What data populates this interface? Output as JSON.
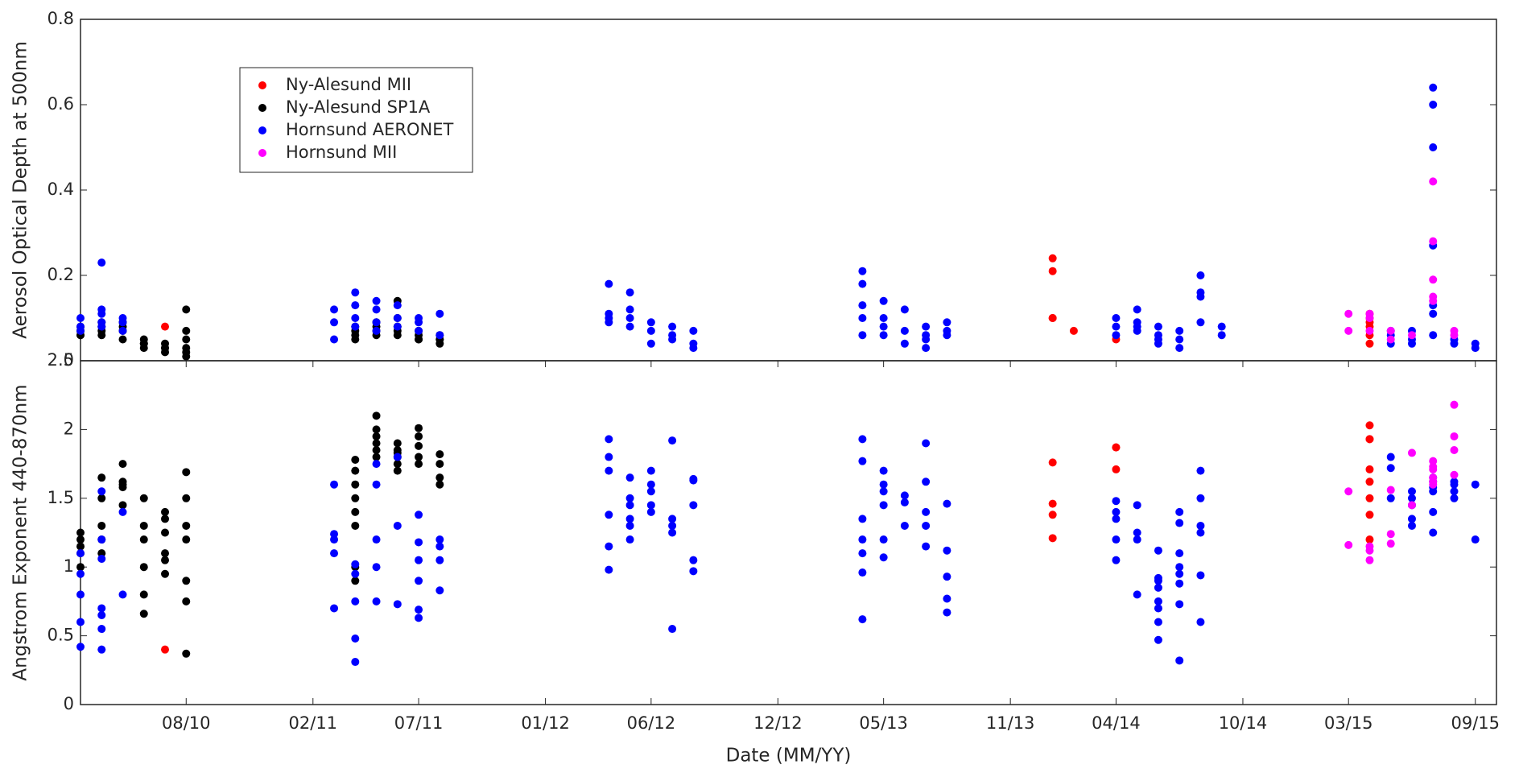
{
  "chart_data": [
    {
      "type": "scatter",
      "y_label": "Aerosol Optical Depth at 500nm",
      "xlim": [
        "03/10",
        "10/15"
      ],
      "ylim": [
        0,
        0.8
      ],
      "yticks": [
        0,
        0.2,
        0.4,
        0.6,
        0.8
      ],
      "legend": "upper left",
      "series": [
        {
          "name": "Ny-Alesund MII",
          "color": "#ff0000",
          "x": [
            "07/10",
            "01/14",
            "01/14",
            "01/14",
            "01/14",
            "02/14",
            "04/14",
            "04/15",
            "04/15",
            "04/15",
            "04/15",
            "04/15",
            "04/15"
          ],
          "values": [
            0.08,
            0.1,
            0.1,
            0.24,
            0.21,
            0.07,
            0.05,
            0.04,
            0.06,
            0.08,
            0.09,
            0.1,
            0.11
          ]
        },
        {
          "name": "Ny-Alesund SP1A",
          "color": "#000000",
          "x": [
            "03/10",
            "03/10",
            "03/10",
            "03/10",
            "04/10",
            "04/10",
            "04/10",
            "04/10",
            "05/10",
            "05/10",
            "05/10",
            "05/10",
            "06/10",
            "06/10",
            "06/10",
            "06/10",
            "07/10",
            "07/10",
            "07/10",
            "07/10",
            "08/10",
            "08/10",
            "08/10",
            "08/10",
            "08/10",
            "08/10",
            "04/11",
            "04/11",
            "04/11",
            "04/11",
            "05/11",
            "05/11",
            "05/11",
            "05/11",
            "06/11",
            "06/11",
            "06/11",
            "06/11",
            "06/11",
            "07/11",
            "07/11",
            "07/11",
            "07/11",
            "08/11",
            "08/11",
            "08/11",
            "08/11"
          ],
          "values": [
            0.06,
            0.07,
            0.08,
            0.06,
            0.07,
            0.09,
            0.06,
            0.08,
            0.08,
            0.09,
            0.07,
            0.05,
            0.04,
            0.05,
            0.03,
            0.04,
            0.03,
            0.04,
            0.03,
            0.02,
            0.02,
            0.03,
            0.05,
            0.12,
            0.07,
            0.01,
            0.06,
            0.08,
            0.05,
            0.07,
            0.07,
            0.09,
            0.08,
            0.06,
            0.1,
            0.08,
            0.14,
            0.07,
            0.06,
            0.06,
            0.05,
            0.07,
            0.05,
            0.05,
            0.04,
            0.06,
            0.05
          ]
        },
        {
          "name": "Hornsund AERONET",
          "color": "#0000ff",
          "x": [
            "03/10",
            "03/10",
            "03/10",
            "04/10",
            "04/10",
            "04/10",
            "04/10",
            "04/10",
            "05/10",
            "05/10",
            "05/10",
            "03/11",
            "03/11",
            "03/11",
            "04/11",
            "04/11",
            "04/11",
            "04/11",
            "05/11",
            "05/11",
            "05/11",
            "05/11",
            "06/11",
            "06/11",
            "06/11",
            "07/11",
            "07/11",
            "07/11",
            "08/11",
            "08/11",
            "04/12",
            "04/12",
            "04/12",
            "04/12",
            "05/12",
            "05/12",
            "05/12",
            "05/12",
            "06/12",
            "06/12",
            "06/12",
            "07/12",
            "07/12",
            "07/12",
            "08/12",
            "08/12",
            "08/12",
            "04/13",
            "04/13",
            "04/13",
            "04/13",
            "04/13",
            "05/13",
            "05/13",
            "05/13",
            "05/13",
            "06/13",
            "06/13",
            "06/13",
            "07/13",
            "07/13",
            "07/13",
            "07/13",
            "08/13",
            "08/13",
            "08/13",
            "04/14",
            "04/14",
            "04/14",
            "05/14",
            "05/14",
            "05/14",
            "05/14",
            "06/14",
            "06/14",
            "06/14",
            "06/14",
            "07/14",
            "07/14",
            "07/14",
            "08/14",
            "08/14",
            "08/14",
            "08/14",
            "09/14",
            "09/14",
            "05/15",
            "05/15",
            "05/15",
            "06/15",
            "06/15",
            "06/15",
            "07/15",
            "07/15",
            "07/15",
            "07/15",
            "07/15",
            "07/15",
            "07/15",
            "08/15",
            "08/15",
            "09/15",
            "09/15"
          ],
          "values": [
            0.1,
            0.08,
            0.07,
            0.12,
            0.09,
            0.11,
            0.23,
            0.08,
            0.09,
            0.1,
            0.07,
            0.05,
            0.12,
            0.09,
            0.13,
            0.16,
            0.1,
            0.08,
            0.14,
            0.12,
            0.09,
            0.07,
            0.13,
            0.1,
            0.08,
            0.09,
            0.07,
            0.1,
            0.11,
            0.06,
            0.11,
            0.09,
            0.18,
            0.1,
            0.16,
            0.12,
            0.1,
            0.08,
            0.07,
            0.09,
            0.04,
            0.05,
            0.08,
            0.06,
            0.07,
            0.04,
            0.03,
            0.21,
            0.18,
            0.1,
            0.13,
            0.06,
            0.08,
            0.1,
            0.06,
            0.14,
            0.04,
            0.07,
            0.12,
            0.08,
            0.05,
            0.06,
            0.03,
            0.09,
            0.07,
            0.06,
            0.06,
            0.1,
            0.08,
            0.12,
            0.09,
            0.07,
            0.08,
            0.06,
            0.04,
            0.08,
            0.05,
            0.03,
            0.07,
            0.05,
            0.2,
            0.15,
            0.09,
            0.16,
            0.08,
            0.06,
            0.04,
            0.07,
            0.06,
            0.05,
            0.07,
            0.04,
            0.64,
            0.6,
            0.5,
            0.27,
            0.13,
            0.11,
            0.06,
            0.05,
            0.04,
            0.04,
            0.03
          ]
        },
        {
          "name": "Hornsund MII",
          "color": "#ff00ff",
          "x": [
            "03/15",
            "03/15",
            "04/15",
            "04/15",
            "04/15",
            "05/15",
            "05/15",
            "06/15",
            "07/15",
            "07/15",
            "07/15",
            "07/15",
            "07/15",
            "08/15",
            "08/15"
          ],
          "values": [
            0.11,
            0.07,
            0.1,
            0.07,
            0.11,
            0.07,
            0.05,
            0.06,
            0.42,
            0.28,
            0.19,
            0.15,
            0.14,
            0.07,
            0.06
          ]
        }
      ]
    },
    {
      "type": "scatter",
      "x_label": "Date (MM/YY)",
      "y_label": "Angstrom Exponent 440-870nm",
      "xlim": [
        "03/10",
        "10/15"
      ],
      "ylim": [
        0,
        2.5
      ],
      "yticks": [
        0,
        0.5,
        1,
        1.5,
        2,
        2.5
      ],
      "xticks": [
        "08/10",
        "02/11",
        "07/11",
        "01/12",
        "06/12",
        "12/12",
        "05/13",
        "11/13",
        "04/14",
        "10/14",
        "03/15",
        "09/15"
      ],
      "series": [
        {
          "color": "#ff0000",
          "x": [
            "07/10",
            "01/14",
            "01/14",
            "01/14",
            "01/14",
            "04/14",
            "04/14",
            "04/14",
            "04/15",
            "04/15",
            "04/15",
            "04/15",
            "04/15",
            "04/15",
            "04/15",
            "04/15"
          ],
          "values": [
            0.4,
            1.76,
            1.21,
            1.46,
            1.38,
            1.87,
            1.87,
            1.71,
            1.93,
            1.93,
            2.03,
            1.71,
            1.62,
            1.5,
            1.38,
            1.2
          ]
        },
        {
          "color": "#000000",
          "x": [
            "03/10",
            "03/10",
            "03/10",
            "03/10",
            "03/10",
            "04/10",
            "04/10",
            "04/10",
            "04/10",
            "04/10",
            "05/10",
            "05/10",
            "05/10",
            "05/10",
            "05/10",
            "06/10",
            "06/10",
            "06/10",
            "06/10",
            "06/10",
            "06/10",
            "07/10",
            "07/10",
            "07/10",
            "07/10",
            "07/10",
            "07/10",
            "08/10",
            "08/10",
            "08/10",
            "08/10",
            "08/10",
            "08/10",
            "08/10",
            "04/11",
            "04/11",
            "04/11",
            "04/11",
            "04/11",
            "04/11",
            "04/11",
            "04/11",
            "05/11",
            "05/11",
            "05/11",
            "05/11",
            "05/11",
            "05/11",
            "06/11",
            "06/11",
            "06/11",
            "06/11",
            "06/11",
            "06/11",
            "07/11",
            "07/11",
            "07/11",
            "07/11",
            "07/11",
            "08/11",
            "08/11",
            "08/11",
            "08/11"
          ],
          "values": [
            1.2,
            1.1,
            1.0,
            1.25,
            1.15,
            1.3,
            1.5,
            1.65,
            1.2,
            1.1,
            1.6,
            1.58,
            1.62,
            1.45,
            1.75,
            1.3,
            1.2,
            1.5,
            1.0,
            0.8,
            0.66,
            1.35,
            1.05,
            0.95,
            1.25,
            1.4,
            1.1,
            1.2,
            1.5,
            1.69,
            0.9,
            0.75,
            0.37,
            1.3,
            1.6,
            1.4,
            1.7,
            1.5,
            1.3,
            1.0,
            0.9,
            1.78,
            1.95,
            2.1,
            1.8,
            1.9,
            2.0,
            1.85,
            1.9,
            1.8,
            1.75,
            1.85,
            1.7,
            1.83,
            1.8,
            1.95,
            2.01,
            1.75,
            1.88,
            1.82,
            1.65,
            1.6,
            1.75
          ]
        },
        {
          "color": "#0000ff",
          "x": [
            "03/10",
            "03/10",
            "03/10",
            "03/10",
            "03/10",
            "04/10",
            "04/10",
            "04/10",
            "04/10",
            "04/10",
            "04/10",
            "04/10",
            "05/10",
            "05/10",
            "03/11",
            "03/11",
            "03/11",
            "03/11",
            "03/11",
            "04/11",
            "04/11",
            "04/11",
            "04/11",
            "04/11",
            "05/11",
            "05/11",
            "05/11",
            "05/11",
            "05/11",
            "06/11",
            "06/11",
            "06/11",
            "07/11",
            "07/11",
            "07/11",
            "07/11",
            "07/11",
            "07/11",
            "08/11",
            "08/11",
            "08/11",
            "08/11",
            "04/12",
            "04/12",
            "04/12",
            "04/12",
            "04/12",
            "04/12",
            "05/12",
            "05/12",
            "05/12",
            "05/12",
            "05/12",
            "05/12",
            "06/12",
            "06/12",
            "06/12",
            "06/12",
            "06/12",
            "07/12",
            "07/12",
            "07/12",
            "07/12",
            "07/12",
            "08/12",
            "08/12",
            "08/12",
            "08/12",
            "08/12",
            "04/13",
            "04/13",
            "04/13",
            "04/13",
            "04/13",
            "04/13",
            "04/13",
            "05/13",
            "05/13",
            "05/13",
            "05/13",
            "05/13",
            "05/13",
            "06/13",
            "06/13",
            "06/13",
            "07/13",
            "07/13",
            "07/13",
            "07/13",
            "07/13",
            "08/13",
            "08/13",
            "08/13",
            "08/13",
            "08/13",
            "04/14",
            "04/14",
            "04/14",
            "04/14",
            "04/14",
            "05/14",
            "05/14",
            "05/14",
            "05/14",
            "06/14",
            "06/14",
            "06/14",
            "06/14",
            "06/14",
            "06/14",
            "06/14",
            "06/14",
            "07/14",
            "07/14",
            "07/14",
            "07/14",
            "07/14",
            "07/14",
            "07/14",
            "07/14",
            "08/14",
            "08/14",
            "08/14",
            "08/14",
            "08/14",
            "08/14",
            "05/15",
            "05/15",
            "05/15",
            "06/15",
            "06/15",
            "06/15",
            "06/15",
            "06/15",
            "07/15",
            "07/15",
            "07/15",
            "07/15",
            "07/15",
            "07/15",
            "08/15",
            "08/15",
            "08/15",
            "08/15",
            "09/15",
            "09/15"
          ],
          "values": [
            0.8,
            0.95,
            1.1,
            0.42,
            0.6,
            0.7,
            1.55,
            1.2,
            0.4,
            0.65,
            0.55,
            1.06,
            1.4,
            0.8,
            0.7,
            1.1,
            1.24,
            1.6,
            1.2,
            0.48,
            0.31,
            0.95,
            0.75,
            1.02,
            1.2,
            1.0,
            1.6,
            0.75,
            1.75,
            1.8,
            1.3,
            0.73,
            0.63,
            1.05,
            0.9,
            0.69,
            1.18,
            1.38,
            0.83,
            1.2,
            1.05,
            1.15,
            1.38,
            0.98,
            1.15,
            1.7,
            1.8,
            1.93,
            1.45,
            1.3,
            1.2,
            1.5,
            1.65,
            1.35,
            1.6,
            1.55,
            1.7,
            1.45,
            1.4,
            1.92,
            1.35,
            1.25,
            0.55,
            1.3,
            1.63,
            0.97,
            1.05,
            1.45,
            1.64,
            1.2,
            1.35,
            0.96,
            0.62,
            1.77,
            1.93,
            1.1,
            1.55,
            1.45,
            1.6,
            1.7,
            1.07,
            1.2,
            1.52,
            1.47,
            1.3,
            1.9,
            1.62,
            1.15,
            1.4,
            1.3,
            1.12,
            0.93,
            0.77,
            1.46,
            0.67,
            1.35,
            1.2,
            1.05,
            1.48,
            1.4,
            1.25,
            0.8,
            1.45,
            1.2,
            0.92,
            0.75,
            0.85,
            0.47,
            0.7,
            0.9,
            0.6,
            1.12,
            0.32,
            0.95,
            0.73,
            1.1,
            1.32,
            1.4,
            0.88,
            1.0,
            1.7,
            1.5,
            1.3,
            1.25,
            0.6,
            0.94,
            1.8,
            1.72,
            1.5,
            1.3,
            1.35,
            1.45,
            1.5,
            1.55,
            1.55,
            1.62,
            1.65,
            1.4,
            1.25,
            1.58,
            1.6,
            1.5,
            1.62,
            1.55,
            1.2,
            1.6
          ]
        },
        {
          "color": "#ff00ff",
          "x": [
            "03/15",
            "03/15",
            "04/15",
            "04/15",
            "04/15",
            "05/15",
            "05/15",
            "05/15",
            "06/15",
            "06/15",
            "07/15",
            "07/15",
            "07/15",
            "07/15",
            "07/15",
            "07/15",
            "08/15",
            "08/15",
            "08/15",
            "08/15"
          ],
          "values": [
            1.55,
            1.16,
            1.05,
            1.12,
            1.15,
            1.17,
            1.24,
            1.56,
            1.83,
            1.45,
            1.73,
            1.62,
            1.6,
            1.77,
            1.71,
            1.65,
            2.18,
            1.95,
            1.85,
            1.67
          ]
        }
      ]
    }
  ]
}
